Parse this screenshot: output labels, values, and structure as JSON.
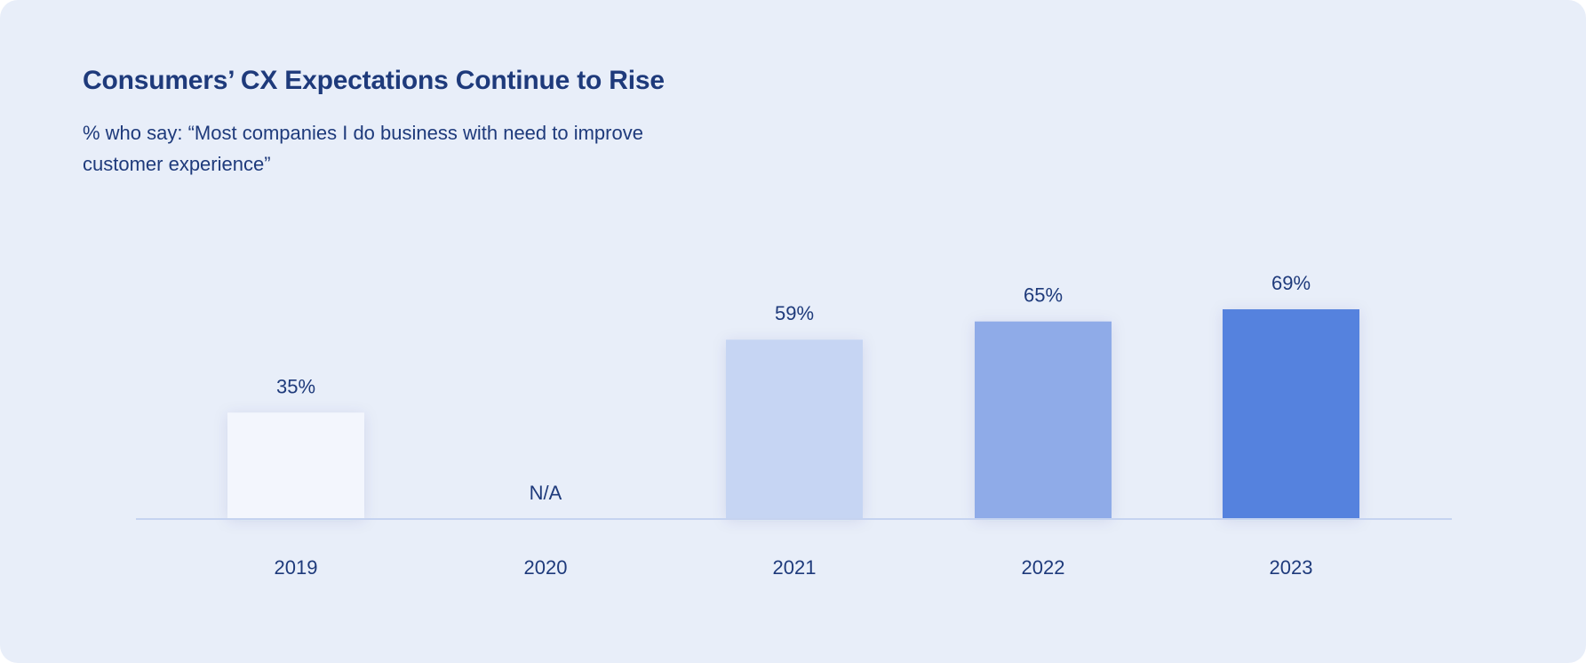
{
  "title": "Consumers’ CX Expectations Continue to Rise",
  "subtitle": "% who say: “Most companies I do business with need to improve customer experience”",
  "colors": {
    "background": "#e8eef9",
    "text": "#1e3a7b",
    "baseline": "#c5d3f0"
  },
  "chart_data": {
    "type": "bar",
    "categories": [
      "2019",
      "2020",
      "2021",
      "2022",
      "2023"
    ],
    "values": [
      35,
      null,
      59,
      65,
      69
    ],
    "data_labels": [
      "35%",
      "N/A",
      "59%",
      "65%",
      "69%"
    ],
    "bar_colors": [
      "#f3f6fd",
      "#e8eef9",
      "#c6d5f3",
      "#8fabe8",
      "#5582de"
    ],
    "ylim": [
      0,
      100
    ],
    "grid": false,
    "legend": "none"
  }
}
